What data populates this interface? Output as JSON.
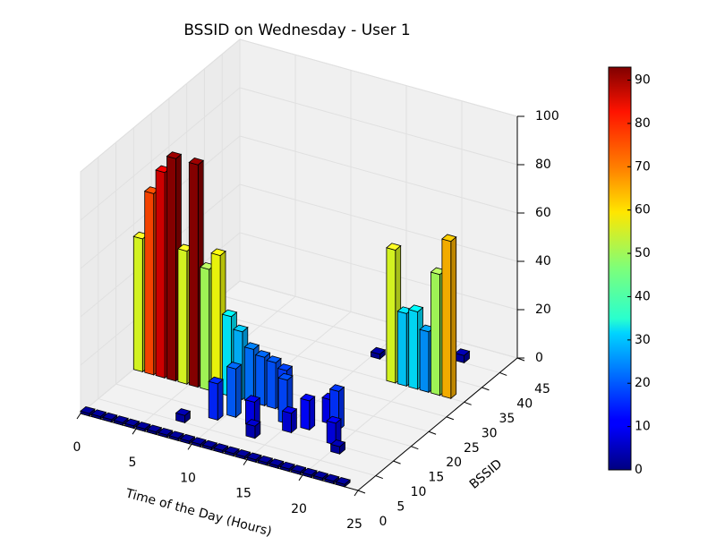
{
  "chart_data": {
    "type": "bar3d",
    "title": "BSSID on Wednesday - User 1",
    "x_label": "Time of the Day (Hours)",
    "y_label": "BSSID",
    "xlim": [
      0,
      25
    ],
    "ylim": [
      0,
      45
    ],
    "zlim": [
      0,
      100
    ],
    "xticks": [
      0,
      5,
      10,
      15,
      20,
      25
    ],
    "yticks": [
      0,
      5,
      10,
      15,
      20,
      25,
      30,
      35,
      40,
      45
    ],
    "zticks": [
      0,
      20,
      40,
      60,
      80,
      100
    ],
    "grid": true,
    "colormap": "jet",
    "clim": [
      0,
      93
    ],
    "colorbar_ticks": [
      0,
      10,
      20,
      30,
      40,
      50,
      60,
      70,
      80,
      90
    ],
    "x": [
      0,
      1,
      2,
      3,
      4,
      5,
      6,
      7,
      8,
      9,
      10,
      11,
      12,
      13,
      14,
      15,
      16,
      17,
      18,
      19,
      20,
      21,
      22,
      23,
      0,
      1,
      2,
      3,
      4,
      5,
      6,
      7,
      8,
      9,
      10,
      11,
      12,
      13,
      7,
      9,
      10,
      12,
      13,
      14,
      15,
      16,
      17,
      18,
      19,
      20,
      18,
      19,
      20,
      21,
      22,
      23,
      15,
      18,
      21,
      17
    ],
    "y": [
      0,
      0,
      0,
      0,
      0,
      0,
      0,
      0,
      0,
      0,
      0,
      0,
      0,
      0,
      0,
      0,
      0,
      0,
      0,
      0,
      0,
      0,
      0,
      0,
      15,
      15,
      15,
      15,
      15,
      15,
      15,
      15,
      15,
      15,
      15,
      15,
      15,
      15,
      5,
      8,
      10,
      9,
      6,
      12,
      10,
      12,
      15,
      14,
      10,
      8,
      30,
      30,
      30,
      30,
      30,
      30,
      35,
      42,
      40,
      38
    ],
    "values": [
      1,
      1,
      1,
      1,
      1,
      1,
      1,
      1,
      1,
      1,
      1,
      1,
      1,
      1,
      1,
      1,
      1,
      1,
      1,
      1,
      1,
      1,
      1,
      1,
      55,
      75,
      85,
      92,
      55,
      92,
      50,
      57,
      33,
      28,
      22,
      20,
      19,
      17,
      3,
      15,
      20,
      10,
      5,
      18,
      8,
      12,
      10,
      16,
      9,
      3,
      55,
      30,
      32,
      25,
      50,
      65,
      2,
      1,
      3,
      2
    ]
  }
}
